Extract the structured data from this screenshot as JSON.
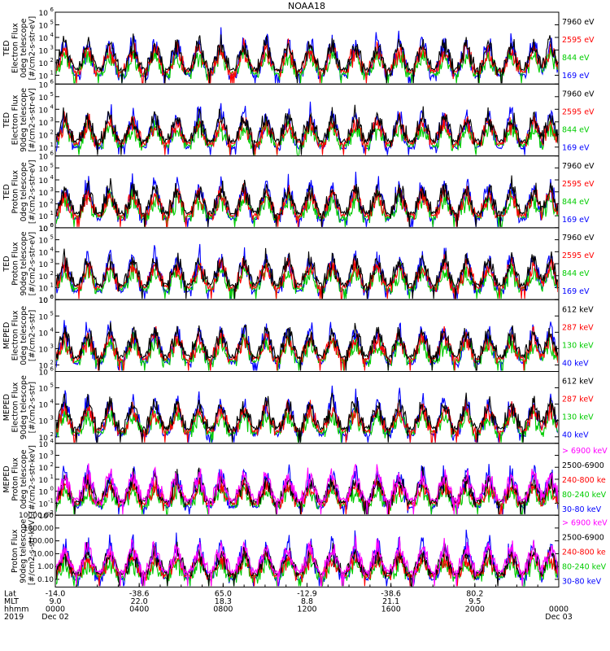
{
  "chart_data": {
    "type": "line",
    "title": "NOAA18",
    "panels": [
      {
        "ylabel_lines": [
          "TED",
          "Electron Flux",
          "0deg telescope",
          "[#/cm2-s-str-eV]"
        ],
        "yticks": [
          {
            "base": "10",
            "exp": "1"
          },
          {
            "base": "10",
            "exp": "2"
          },
          {
            "base": "10",
            "exp": "3"
          },
          {
            "base": "10",
            "exp": "4"
          },
          {
            "base": "10",
            "exp": "5"
          },
          {
            "base": "10",
            "exp": "6"
          }
        ],
        "ylim_log10": [
          0.3,
          6
        ],
        "legend": [
          {
            "label": "7960 eV",
            "color": "#000000"
          },
          {
            "label": "2595 eV",
            "color": "#ff0000"
          },
          {
            "label": "844 eV",
            "color": "#00cc00"
          },
          {
            "label": "169 eV",
            "color": "#0000ff"
          }
        ]
      },
      {
        "ylabel_lines": [
          "TED",
          "Electron Flux",
          "90deg telescope",
          "[#/cm2-s-str-eV]"
        ],
        "yticks": [
          {
            "base": "10",
            "exp": "1"
          },
          {
            "base": "10",
            "exp": "2"
          },
          {
            "base": "10",
            "exp": "3"
          },
          {
            "base": "10",
            "exp": "4"
          },
          {
            "base": "10",
            "exp": "5"
          },
          {
            "base": "10",
            "exp": "6"
          }
        ],
        "ylim_log10": [
          0.3,
          6
        ],
        "legend": [
          {
            "label": "7960 eV",
            "color": "#000000"
          },
          {
            "label": "2595 eV",
            "color": "#ff0000"
          },
          {
            "label": "844 eV",
            "color": "#00cc00"
          },
          {
            "label": "169 eV",
            "color": "#0000ff"
          }
        ]
      },
      {
        "ylabel_lines": [
          "TED",
          "Proton Flux",
          "0deg telescope",
          "[#/cm2-s-str-eV]"
        ],
        "yticks": [
          {
            "base": "10",
            "exp": "0"
          },
          {
            "base": "10",
            "exp": "1"
          },
          {
            "base": "10",
            "exp": "2"
          },
          {
            "base": "10",
            "exp": "3"
          },
          {
            "base": "10",
            "exp": "4"
          },
          {
            "base": "10",
            "exp": "5"
          },
          {
            "base": "10",
            "exp": "6"
          }
        ],
        "ylim_log10": [
          0,
          6
        ],
        "legend": [
          {
            "label": "7960 eV",
            "color": "#000000"
          },
          {
            "label": "2595 eV",
            "color": "#ff0000"
          },
          {
            "label": "844 eV",
            "color": "#00cc00"
          },
          {
            "label": "169 eV",
            "color": "#0000ff"
          }
        ]
      },
      {
        "ylabel_lines": [
          "TED",
          "Proton Flux",
          "90deg telescope",
          "[#/cm2-s-str-eV]"
        ],
        "yticks": [
          {
            "base": "10",
            "exp": "0"
          },
          {
            "base": "10",
            "exp": "1"
          },
          {
            "base": "10",
            "exp": "2"
          },
          {
            "base": "10",
            "exp": "3"
          },
          {
            "base": "10",
            "exp": "4"
          },
          {
            "base": "10",
            "exp": "5"
          },
          {
            "base": "10",
            "exp": "6"
          }
        ],
        "ylim_log10": [
          0,
          6
        ],
        "legend": [
          {
            "label": "7960 eV",
            "color": "#000000"
          },
          {
            "label": "2595 eV",
            "color": "#ff0000"
          },
          {
            "label": "844 eV",
            "color": "#00cc00"
          },
          {
            "label": "169 eV",
            "color": "#0000ff"
          }
        ]
      },
      {
        "ylabel_lines": [
          "MEPED",
          "Electron Flux",
          "0deg telescope",
          "[#/cm2-s-str]"
        ],
        "yticks": [
          {
            "base": "10",
            "exp": "2"
          },
          {
            "base": "10",
            "exp": "3"
          },
          {
            "base": "10",
            "exp": "4"
          },
          {
            "base": "10",
            "exp": "5"
          },
          {
            "base": "10",
            "exp": "6"
          }
        ],
        "ylim_log10": [
          1.6,
          6
        ],
        "legend": [
          {
            "label": "612 keV",
            "color": "#000000"
          },
          {
            "label": "287 keV",
            "color": "#ff0000"
          },
          {
            "label": "130 keV",
            "color": "#00cc00"
          },
          {
            "label": "40 keV",
            "color": "#0000ff"
          }
        ]
      },
      {
        "ylabel_lines": [
          "MEPED",
          "Electron Flux",
          "90deg telescope",
          "[#/cm2-s-str]"
        ],
        "yticks": [
          {
            "base": "10",
            "exp": "2"
          },
          {
            "base": "10",
            "exp": "3"
          },
          {
            "base": "10",
            "exp": "4"
          },
          {
            "base": "10",
            "exp": "5"
          },
          {
            "base": "10",
            "exp": "6"
          }
        ],
        "ylim_log10": [
          1.6,
          6
        ],
        "legend": [
          {
            "label": "612 keV",
            "color": "#000000"
          },
          {
            "label": "287 keV",
            "color": "#ff0000"
          },
          {
            "label": "130 keV",
            "color": "#00cc00"
          },
          {
            "label": "40 keV",
            "color": "#0000ff"
          }
        ]
      },
      {
        "ylabel_lines": [
          "MEPED",
          "Proton Flux",
          "0deg telescope",
          "[#/cm2-s-str-keV]"
        ],
        "yticks": [
          {
            "base": "10",
            "exp": "-2"
          },
          {
            "base": "10",
            "exp": "-1"
          },
          {
            "base": "10",
            "exp": "0"
          },
          {
            "base": "10",
            "exp": "1"
          },
          {
            "base": "10",
            "exp": "2"
          },
          {
            "base": "10",
            "exp": "3"
          },
          {
            "base": "10",
            "exp": "4"
          }
        ],
        "ylim_log10": [
          -2,
          4
        ],
        "legend": [
          {
            "label": "> 6900 keV",
            "color": "#ff00ff"
          },
          {
            "label": "2500-6900",
            "color": "#000000"
          },
          {
            "label": "240-800 ke",
            "color": "#ff0000"
          },
          {
            "label": "80-240 keV",
            "color": "#00cc00"
          },
          {
            "label": "30-80 keV",
            "color": "#0000ff"
          }
        ]
      },
      {
        "ylabel_lines": [
          "Proton Flux",
          "90deg telescope",
          "[#/cm2-s-str-keV]"
        ],
        "yticks": [
          {
            "text": "0.10"
          },
          {
            "text": "1.00"
          },
          {
            "text": "10.00"
          },
          {
            "text": "100.00"
          },
          {
            "text": "1000.00"
          },
          {
            "text": "10000.00"
          }
        ],
        "ylim_log10": [
          -1.6,
          4
        ],
        "legend": [
          {
            "label": "> 6900 keV",
            "color": "#ff00ff"
          },
          {
            "label": "2500-6900",
            "color": "#000000"
          },
          {
            "label": "240-800 ke",
            "color": "#ff0000"
          },
          {
            "label": "80-240 keV",
            "color": "#00cc00"
          },
          {
            "label": "30-80 keV",
            "color": "#0000ff"
          }
        ]
      }
    ],
    "x_axis": {
      "row_labels": [
        "Lat",
        "MLT",
        "hhmm",
        "2019"
      ],
      "hours": [
        0,
        4,
        8,
        12,
        16,
        20,
        24
      ],
      "lat": [
        "-14.0",
        "-38.6",
        "65.0",
        "-12.9",
        "-38.6",
        "80.2",
        ""
      ],
      "mlt": [
        "9.0",
        "22.0",
        "18.3",
        "8.8",
        "21.1",
        "9.5",
        ""
      ],
      "hhmm": [
        "0000",
        "0400",
        "0800",
        "1200",
        "1600",
        "2000",
        "0000"
      ],
      "date": [
        "Dec 02",
        "",
        "",
        "",
        "",
        "",
        "Dec 03"
      ]
    },
    "orbit_passes": [
      0.45,
      1.55,
      2.6,
      3.7,
      4.75,
      5.8,
      6.85,
      7.9,
      9.0,
      10.05,
      11.1,
      12.15,
      13.2,
      14.3,
      15.35,
      16.4,
      17.5,
      18.55,
      19.6,
      20.65,
      21.75,
      22.8,
      23.6
    ]
  }
}
